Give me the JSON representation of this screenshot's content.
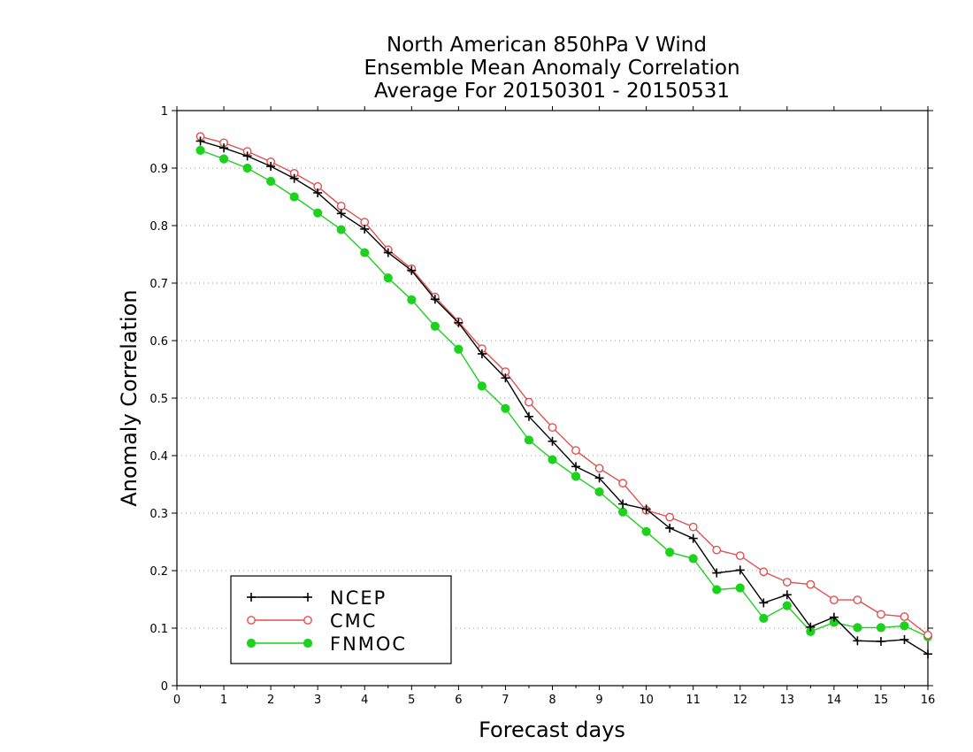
{
  "chart_data": {
    "type": "line",
    "title_lines": [
      "North American 850hPa V Wind",
      "Ensemble Mean Anomaly Correlation",
      "Average For 20150301 - 20150531"
    ],
    "xlabel": "Forecast days",
    "ylabel": "Anomaly Correlation",
    "xlim": [
      0,
      16
    ],
    "ylim": [
      0,
      1
    ],
    "x_ticks": [
      "0",
      "1",
      "2",
      "3",
      "4",
      "5",
      "6",
      "7",
      "8",
      "9",
      "10",
      "11",
      "12",
      "13",
      "14",
      "15",
      "16"
    ],
    "y_ticks": [
      "0",
      "0.1",
      "0.2",
      "0.3",
      "0.4",
      "0.5",
      "0.6",
      "0.7",
      "0.8",
      "0.9",
      "1"
    ],
    "grid": "horizontal dotted",
    "legend_position": "bottom-left",
    "x": [
      0.5,
      1,
      1.5,
      2,
      2.5,
      3,
      3.5,
      4,
      4.5,
      5,
      5.5,
      6,
      6.5,
      7,
      7.5,
      8,
      8.5,
      9,
      9.5,
      10,
      10.5,
      11,
      11.5,
      12,
      12.5,
      13,
      13.5,
      14,
      14.5,
      15,
      15.5,
      16
    ],
    "series": [
      {
        "name": "NCEP",
        "color": "#000000",
        "marker": "plus",
        "values": [
          0.947,
          0.935,
          0.921,
          0.903,
          0.882,
          0.857,
          0.821,
          0.794,
          0.753,
          0.722,
          0.672,
          0.631,
          0.577,
          0.535,
          0.468,
          0.425,
          0.381,
          0.361,
          0.316,
          0.307,
          0.274,
          0.256,
          0.196,
          0.201,
          0.144,
          0.158,
          0.102,
          0.119,
          0.078,
          0.077,
          0.08,
          0.055
        ]
      },
      {
        "name": "CMC",
        "color": "#e05050",
        "marker": "open-circle",
        "values": [
          0.955,
          0.944,
          0.929,
          0.911,
          0.891,
          0.868,
          0.834,
          0.806,
          0.758,
          0.725,
          0.676,
          0.633,
          0.586,
          0.546,
          0.493,
          0.449,
          0.409,
          0.378,
          0.352,
          0.305,
          0.293,
          0.276,
          0.236,
          0.226,
          0.198,
          0.18,
          0.176,
          0.149,
          0.149,
          0.124,
          0.12,
          0.088
        ]
      },
      {
        "name": "FNMOC",
        "color": "#1cd21c",
        "marker": "filled-circle",
        "values": [
          0.931,
          0.916,
          0.9,
          0.877,
          0.85,
          0.822,
          0.793,
          0.753,
          0.709,
          0.671,
          0.625,
          0.585,
          0.521,
          0.482,
          0.427,
          0.393,
          0.364,
          0.337,
          0.302,
          0.268,
          0.232,
          0.221,
          0.167,
          0.17,
          0.117,
          0.139,
          0.094,
          0.11,
          0.101,
          0.101,
          0.104,
          0.085
        ]
      }
    ]
  }
}
